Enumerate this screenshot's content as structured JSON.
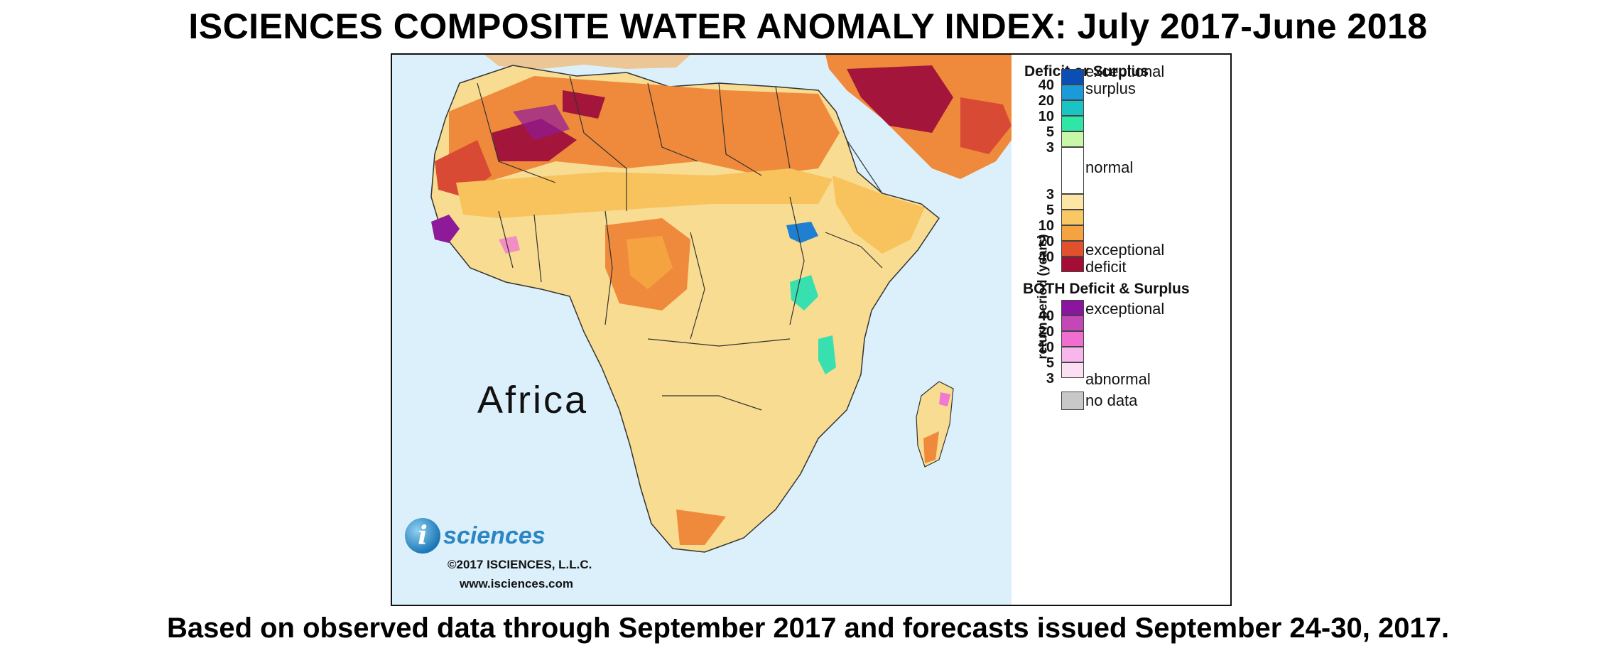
{
  "title": "ISCIENCES COMPOSITE WATER ANOMALY INDEX: July 2017-June 2018",
  "footer": "Based on observed data through September 2017 and forecasts issued September 24-30, 2017.",
  "map": {
    "region_label": "Africa",
    "logo_glyph": "i",
    "logo_text": "sciences",
    "copyright": "©2017 ISCIENCES, L.L.C.",
    "website": "www.isciences.com",
    "colors": {
      "ocean": "#dcf0fb",
      "land_base": "#f7dc92",
      "deficit_moderate": "#f8c25c",
      "deficit_severe": "#ef8a3c",
      "deficit_extreme": "#d94a35",
      "deficit_exceptional": "#a3153a",
      "surplus_green": "#38e0b0",
      "surplus_blue": "#1f7fd0",
      "both": "#8e1a9a",
      "both_pink": "#f07ad0",
      "border": "#333333"
    }
  },
  "legend": {
    "deficit_surplus_title": "Deficit or Surplus",
    "axis_label": "return period (years)",
    "surplus_ticks": [
      "40",
      "20",
      "10",
      "5",
      "3"
    ],
    "deficit_ticks": [
      "3",
      "5",
      "10",
      "20",
      "40"
    ],
    "label_exceptional_surplus_1": "exceptional",
    "label_exceptional_surplus_2": "surplus",
    "label_normal": "normal",
    "label_exceptional_deficit_1": "exceptional",
    "label_exceptional_deficit_2": "deficit",
    "surplus_colors": [
      "#0b4fb4",
      "#1a9ad8",
      "#1ac4c4",
      "#2ee6a6",
      "#c8f7a8"
    ],
    "normal_color": "#ffffff",
    "deficit_colors": [
      "#fbe6a6",
      "#f9c864",
      "#f5a340",
      "#e2512d",
      "#a40e36"
    ],
    "both_title": "BOTH Deficit & Surplus",
    "both_ticks": [
      "40",
      "20",
      "10",
      "5",
      "3"
    ],
    "both_colors": [
      "#8a159e",
      "#c447b8",
      "#f06ed0",
      "#f7b6ec",
      "#fbe0f3"
    ],
    "label_both_exceptional": "exceptional",
    "label_both_abnormal": "abnormal",
    "no_data_label": "no data",
    "no_data_color": "#c8c8c8"
  }
}
